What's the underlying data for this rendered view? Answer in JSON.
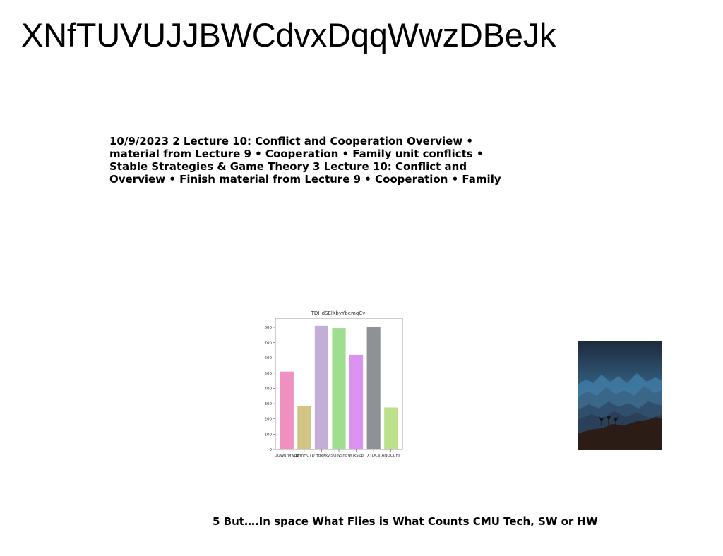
{
  "page": {
    "title": "XNfTUVUJJBWCdvxDqqWwzDBeJk",
    "text_lines": [
      "10/9/2023 2 Lecture 10: Conflict and Cooperation Overview •",
      "material from Lecture 9 • Cooperation • Family unit conflicts •",
      "Stable Strategies & Game Theory 3 Lecture 10: Conflict and",
      "Overview • Finish material from Lecture 9 • Cooperation • Family"
    ],
    "footer": "5 But….In space What Flies is What Counts CMU Tech, SW or HW"
  },
  "photo": {
    "icon": "mountain-silhouette-image"
  },
  "chart_data": {
    "type": "bar",
    "title": "TDHdSElKbyYbemqCv",
    "categories": [
      "DUWurMwdp",
      "DwmHCTD",
      "HdxXk",
      "ylSOWSnqV",
      "WjkSZp",
      "XTDCe",
      "ANOCUhs"
    ],
    "values": [
      510,
      285,
      810,
      795,
      620,
      800,
      275
    ],
    "colors": [
      "#f090c0",
      "#d2c485",
      "#c2aed6",
      "#9ede8e",
      "#dc92f0",
      "#8e9296",
      "#bde08a"
    ],
    "yticks": [
      0,
      100,
      200,
      300,
      400,
      500,
      600,
      700,
      800
    ],
    "ylim": [
      0,
      860
    ],
    "xlabel": "",
    "ylabel": "",
    "grid": false,
    "legend": "none"
  }
}
